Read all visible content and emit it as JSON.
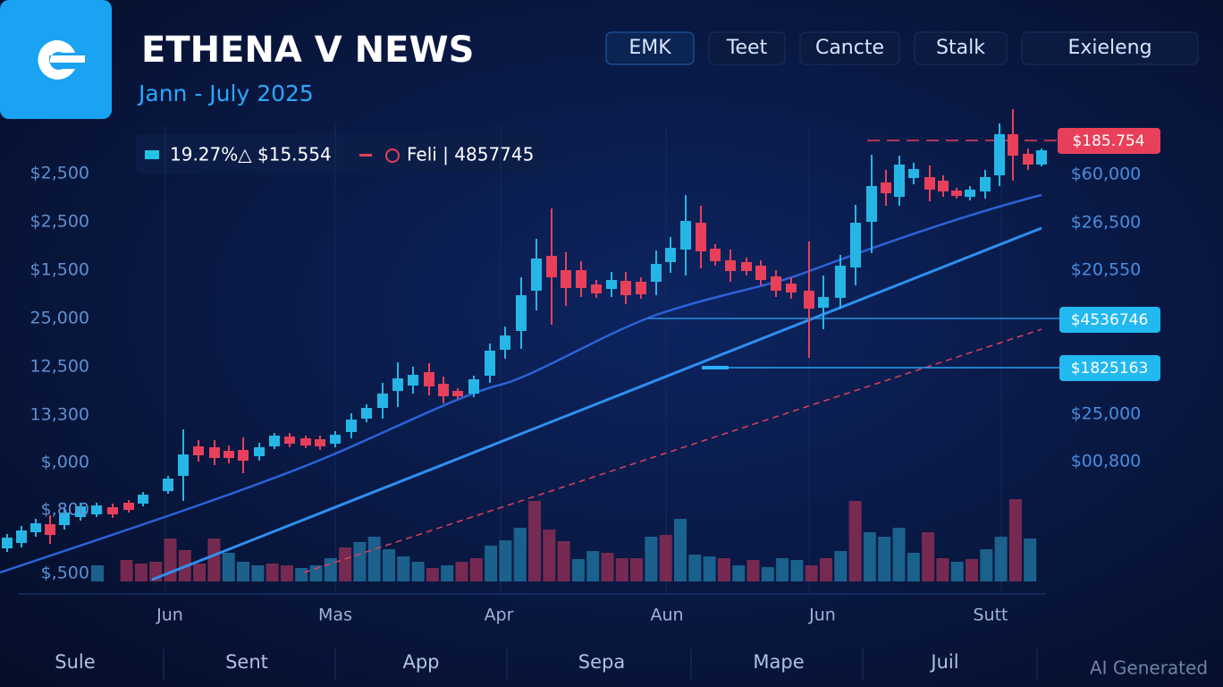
{
  "header": {
    "title": "ETHENA V NEWS",
    "subtitle": "Jann - July 2025"
  },
  "tabs": [
    "EMK",
    "Teet",
    "Cancte",
    "Stalk",
    "Exieleng"
  ],
  "legend": {
    "item1": "19.27%△ $15.554",
    "item2": "Feli | 4857745"
  },
  "left_labels": [
    "$2,500",
    "$2,500",
    "$1,500",
    "25,000",
    "12,500",
    "13,300",
    "$,000",
    "$,800",
    "$,500"
  ],
  "right_labels": [
    "$60,000",
    "$26,500",
    "$20,550",
    "$25,000",
    "$00,800"
  ],
  "price_tags": [
    "$185.754",
    "$4536746",
    "$1825163"
  ],
  "x_labels": [
    "Jun",
    "Mas",
    "Apr",
    "Aun",
    "Jun",
    "Sutt"
  ],
  "bottom_labels": [
    "Sule",
    "Sent",
    "App",
    "Sepa",
    "Mape",
    "Juil"
  ],
  "watermark": "AI Generated"
}
